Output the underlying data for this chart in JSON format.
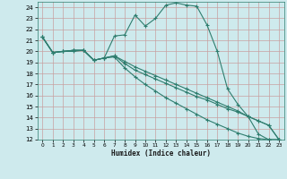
{
  "xlabel": "Humidex (Indice chaleur)",
  "bg_color": "#ceeaed",
  "line_color": "#2e7d6e",
  "grid_color": "#b8d8dc",
  "xlim": [
    -0.5,
    23.5
  ],
  "ylim": [
    12,
    24.5
  ],
  "xticks": [
    0,
    1,
    2,
    3,
    4,
    5,
    6,
    7,
    8,
    9,
    10,
    11,
    12,
    13,
    14,
    15,
    16,
    17,
    18,
    19,
    20,
    21,
    22,
    23
  ],
  "yticks": [
    12,
    13,
    14,
    15,
    16,
    17,
    18,
    19,
    20,
    21,
    22,
    23,
    24
  ],
  "series": [
    {
      "x": [
        0,
        1,
        2,
        3,
        4,
        5,
        6,
        7,
        8,
        9,
        10,
        11,
        12,
        13,
        14,
        15,
        16,
        17,
        18,
        19,
        20,
        21,
        22,
        23
      ],
      "y": [
        21.3,
        19.9,
        20.0,
        20.0,
        20.1,
        19.2,
        19.4,
        21.4,
        21.5,
        23.3,
        22.3,
        23.0,
        24.2,
        24.4,
        24.2,
        24.1,
        22.4,
        20.0,
        16.6,
        15.2,
        14.1,
        12.5,
        12.0,
        12.0
      ]
    },
    {
      "x": [
        0,
        1,
        2,
        3,
        4,
        5,
        6,
        7,
        8,
        9,
        10,
        11,
        12,
        13,
        14,
        15,
        16,
        17,
        18,
        19,
        20,
        21,
        22,
        23
      ],
      "y": [
        21.3,
        19.9,
        20.0,
        20.1,
        20.1,
        19.2,
        19.4,
        19.6,
        18.9,
        18.3,
        17.9,
        17.5,
        17.1,
        16.7,
        16.3,
        15.9,
        15.6,
        15.2,
        14.8,
        14.5,
        14.1,
        13.7,
        13.3,
        12.0
      ]
    },
    {
      "x": [
        0,
        1,
        2,
        3,
        4,
        5,
        6,
        7,
        8,
        9,
        10,
        11,
        12,
        13,
        14,
        15,
        16,
        17,
        18,
        19,
        20,
        21,
        22,
        23
      ],
      "y": [
        21.3,
        19.9,
        20.0,
        20.1,
        20.1,
        19.2,
        19.4,
        19.5,
        18.5,
        17.7,
        17.0,
        16.4,
        15.8,
        15.3,
        14.8,
        14.3,
        13.8,
        13.4,
        13.0,
        12.6,
        12.3,
        12.1,
        12.0,
        12.0
      ]
    },
    {
      "x": [
        0,
        1,
        2,
        3,
        4,
        5,
        6,
        7,
        8,
        9,
        10,
        11,
        12,
        13,
        14,
        15,
        16,
        17,
        18,
        19,
        20,
        21,
        22,
        23
      ],
      "y": [
        21.3,
        19.9,
        20.0,
        20.1,
        20.1,
        19.2,
        19.4,
        19.6,
        19.1,
        18.6,
        18.2,
        17.8,
        17.4,
        17.0,
        16.6,
        16.2,
        15.8,
        15.4,
        15.0,
        14.6,
        14.1,
        13.7,
        13.3,
        12.0
      ]
    }
  ]
}
